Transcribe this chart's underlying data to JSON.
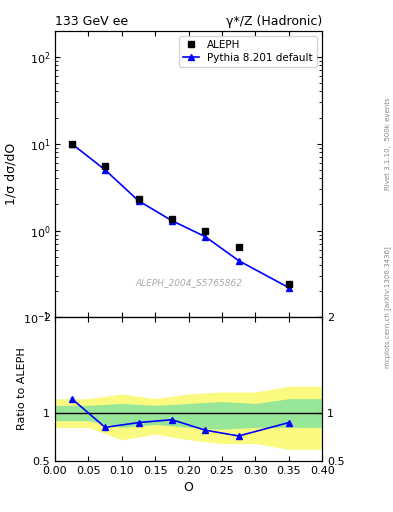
{
  "title_left": "133 GeV ee",
  "title_right": "γ*/Z (Hadronic)",
  "ylabel_main": "1/σ dσ/dO",
  "ylabel_ratio": "Ratio to ALEPH",
  "xlabel": "O",
  "right_label_top": "Rivet 3.1.10,  500k events",
  "right_label_bot": "mcplots.cern.ch [arXiv:1306.3436]",
  "watermark": "ALEPH_2004_S5765862",
  "aleph_x": [
    0.025,
    0.075,
    0.125,
    0.175,
    0.225,
    0.275,
    0.35
  ],
  "aleph_y": [
    10.0,
    5.5,
    2.3,
    1.35,
    1.0,
    0.65,
    0.24
  ],
  "pythia_x": [
    0.025,
    0.075,
    0.125,
    0.175,
    0.225,
    0.275,
    0.35
  ],
  "pythia_y": [
    10.0,
    5.0,
    2.2,
    1.3,
    0.85,
    0.45,
    0.22
  ],
  "ratio_x": [
    0.025,
    0.075,
    0.125,
    0.175,
    0.225,
    0.275,
    0.35
  ],
  "ratio_y": [
    1.15,
    0.85,
    0.9,
    0.93,
    0.82,
    0.76,
    0.9
  ],
  "yellow_band_x": [
    0.0,
    0.05,
    0.1,
    0.15,
    0.2,
    0.25,
    0.3,
    0.35,
    0.4
  ],
  "yellow_band_lower": [
    0.85,
    0.85,
    0.72,
    0.78,
    0.72,
    0.68,
    0.68,
    0.62,
    0.62
  ],
  "yellow_band_upper": [
    1.15,
    1.15,
    1.2,
    1.15,
    1.2,
    1.22,
    1.22,
    1.28,
    1.28
  ],
  "green_band_x": [
    0.0,
    0.05,
    0.1,
    0.15,
    0.2,
    0.25,
    0.3,
    0.35,
    0.4
  ],
  "green_band_lower": [
    0.92,
    0.92,
    0.85,
    0.88,
    0.85,
    0.83,
    0.85,
    0.85,
    0.85
  ],
  "green_band_upper": [
    1.08,
    1.08,
    1.1,
    1.08,
    1.1,
    1.12,
    1.1,
    1.15,
    1.15
  ],
  "ylim_main": [
    0.1,
    200
  ],
  "ylim_ratio": [
    0.5,
    2.0
  ],
  "xlim": [
    0.0,
    0.4
  ],
  "aleph_color": "black",
  "pythia_color": "blue",
  "legend_aleph": "ALEPH",
  "legend_pythia": "Pythia 8.201 default",
  "green_color": "#98E698",
  "yellow_color": "#FAFA80"
}
